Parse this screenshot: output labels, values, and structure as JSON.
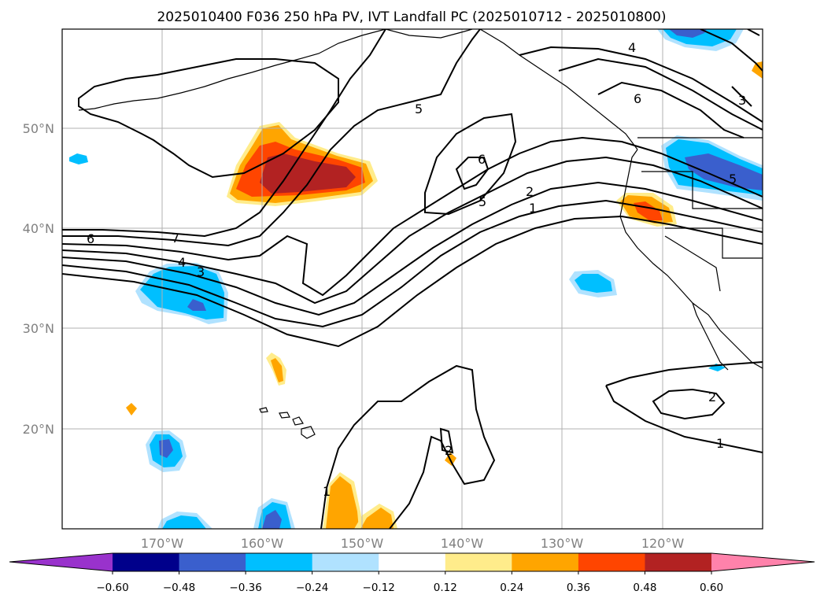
{
  "title": "2025010400 F036 250 hPa PV, IVT Landfall PC (2025010712 - 2025010800)",
  "axes": {
    "lat_labels": [
      "50°N",
      "40°N",
      "30°N",
      "20°N"
    ],
    "lon_labels": [
      "170°W",
      "160°W",
      "150°W",
      "140°W",
      "130°W",
      "120°W"
    ]
  },
  "colorbar": {
    "extend": "both",
    "bins": [
      {
        "range": "< -0.60",
        "color": "#9932cc"
      },
      {
        "range": "-0.60 to -0.48",
        "color": "#00008b"
      },
      {
        "range": "-0.48 to -0.36",
        "color": "#3a5fcd"
      },
      {
        "range": "-0.36 to -0.24",
        "color": "#00bfff"
      },
      {
        "range": "-0.24 to -0.12",
        "color": "#b0e2ff"
      },
      {
        "range": "-0.12 to 0.12",
        "color": "#ffffff"
      },
      {
        "range": "0.12 to 0.24",
        "color": "#ffec8b"
      },
      {
        "range": "0.24 to 0.36",
        "color": "#ffa500"
      },
      {
        "range": "0.36 to 0.48",
        "color": "#ff4500"
      },
      {
        "range": "0.48 to 0.60",
        "color": "#b22222"
      },
      {
        "range": "> 0.60",
        "color": "#ff82ab"
      }
    ],
    "ticks": [
      "−0.60",
      "−0.48",
      "−0.36",
      "−0.24",
      "−0.12",
      "0.12",
      "0.24",
      "0.36",
      "0.48",
      "0.60"
    ]
  },
  "contour_labels": [
    "6",
    "7",
    "4",
    "3",
    "5",
    "6",
    "5",
    "2",
    "1",
    "4",
    "6",
    "3",
    "2",
    "1",
    "1",
    "2",
    "5"
  ],
  "colors": {
    "gridline": "#b0b0b0",
    "contour": "#000000",
    "coastline": "#000000",
    "tick_label": "#808080"
  }
}
